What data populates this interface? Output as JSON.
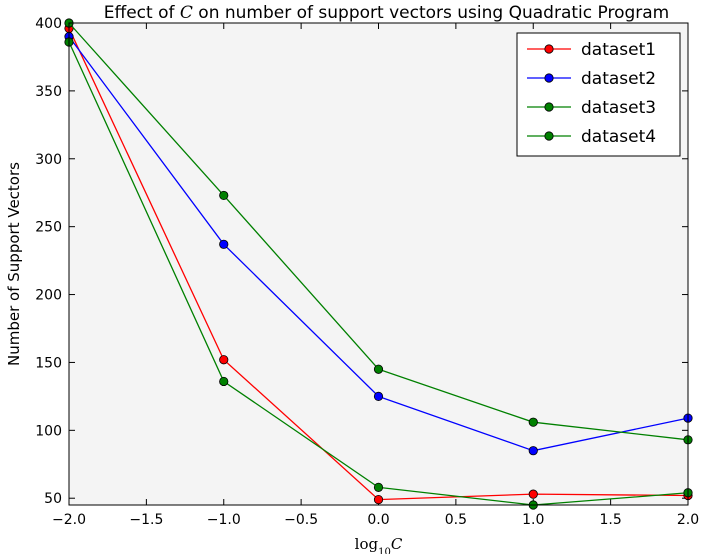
{
  "chart_data": {
    "type": "line",
    "title_prefix": "Effect of ",
    "title_var": "C",
    "title_suffix": " on number of support vectors using Quadratic Program",
    "xlabel_prefix": "log",
    "xlabel_sub": "10",
    "xlabel_var": "C",
    "ylabel": "Number of Support Vectors",
    "x": [
      -2.0,
      -1.0,
      0.0,
      1.0,
      2.0
    ],
    "xlim": [
      -2.0,
      2.0
    ],
    "ylim": [
      45,
      400
    ],
    "xticks": [
      "−2.0",
      "−1.5",
      "−1.0",
      "−0.5",
      "0.0",
      "0.5",
      "1.0",
      "1.5",
      "2.0"
    ],
    "xtick_values": [
      -2.0,
      -1.5,
      -1.0,
      -0.5,
      0.0,
      0.5,
      1.0,
      1.5,
      2.0
    ],
    "yticks": [
      "50",
      "100",
      "150",
      "200",
      "250",
      "300",
      "350",
      "400"
    ],
    "ytick_values": [
      50,
      100,
      150,
      200,
      250,
      300,
      350,
      400
    ],
    "grid": false,
    "legend_position": "top-right",
    "plot_background": "#f4f4f4",
    "series": [
      {
        "name": "dataset1",
        "color": "#ff0000",
        "values": [
          396,
          152,
          49,
          53,
          52
        ]
      },
      {
        "name": "dataset2",
        "color": "#0000ff",
        "values": [
          390,
          237,
          125,
          85,
          109
        ]
      },
      {
        "name": "dataset3",
        "color": "#008000",
        "values": [
          386,
          136,
          58,
          45,
          54
        ]
      },
      {
        "name": "dataset4",
        "color": "#008000",
        "values": [
          400,
          273,
          145,
          106,
          93
        ]
      }
    ]
  }
}
